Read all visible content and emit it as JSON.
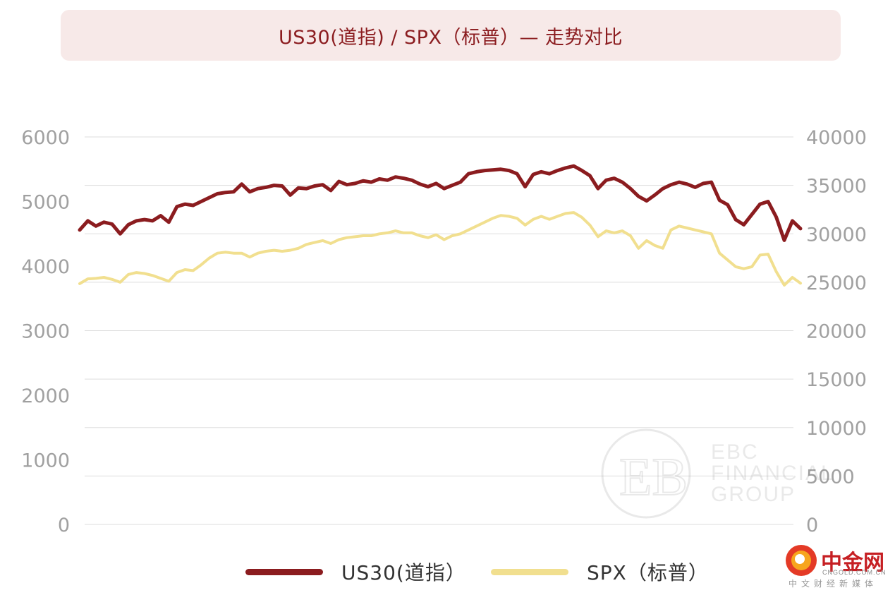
{
  "title": "US30(道指) / SPX（标普）— 走势对比",
  "chart_data": {
    "type": "line",
    "left_axis": {
      "min": 0,
      "max": 6000,
      "ticks": [
        "0",
        "1000",
        "2000",
        "3000",
        "4000",
        "5000",
        "6000"
      ]
    },
    "right_axis": {
      "min": 0,
      "max": 40000,
      "ticks": [
        "0",
        "5000",
        "10000",
        "15000",
        "20000",
        "25000",
        "30000",
        "35000",
        "40000"
      ]
    },
    "grid": true,
    "legend_position": "bottom",
    "series": [
      {
        "name": "US30(道指）",
        "axis": "left",
        "color": "#8b1c1f",
        "values": [
          4560,
          4700,
          4620,
          4680,
          4650,
          4500,
          4640,
          4700,
          4720,
          4700,
          4780,
          4680,
          4920,
          4960,
          4940,
          5000,
          5060,
          5120,
          5140,
          5150,
          5270,
          5150,
          5200,
          5220,
          5250,
          5240,
          5100,
          5210,
          5200,
          5240,
          5260,
          5170,
          5310,
          5260,
          5280,
          5320,
          5300,
          5350,
          5330,
          5380,
          5360,
          5330,
          5270,
          5230,
          5280,
          5200,
          5250,
          5300,
          5430,
          5460,
          5480,
          5490,
          5500,
          5480,
          5430,
          5230,
          5420,
          5460,
          5430,
          5480,
          5520,
          5550,
          5480,
          5400,
          5200,
          5330,
          5360,
          5300,
          5200,
          5080,
          5010,
          5100,
          5200,
          5260,
          5300,
          5270,
          5220,
          5280,
          5300,
          5020,
          4950,
          4720,
          4640,
          4800,
          4960,
          5000,
          4760,
          4400,
          4700,
          4580
        ]
      },
      {
        "name": "SPX（标普）",
        "axis": "right",
        "color": "#f1df8f",
        "values": [
          24850,
          25350,
          25400,
          25500,
          25300,
          25000,
          25800,
          26000,
          25900,
          25700,
          25400,
          25100,
          26000,
          26300,
          26200,
          26800,
          27500,
          28000,
          28100,
          28000,
          28000,
          27600,
          28000,
          28200,
          28300,
          28200,
          28300,
          28500,
          28900,
          29100,
          29300,
          29000,
          29400,
          29600,
          29700,
          29800,
          29800,
          30000,
          30100,
          30300,
          30100,
          30100,
          29800,
          29600,
          29900,
          29400,
          29800,
          30000,
          30400,
          30800,
          31200,
          31600,
          31900,
          31800,
          31600,
          30900,
          31500,
          31800,
          31500,
          31800,
          32100,
          32200,
          31700,
          30900,
          29700,
          30300,
          30100,
          30300,
          29800,
          28500,
          29300,
          28800,
          28500,
          30400,
          30800,
          30600,
          30400,
          30200,
          30000,
          28000,
          27300,
          26600,
          26400,
          26600,
          27800,
          27900,
          26100,
          24700,
          25500,
          24900
        ]
      }
    ]
  },
  "legend": [
    {
      "label": "US30(道指）",
      "color": "#8b1c1f"
    },
    {
      "label": "SPX（标普）",
      "color": "#f1df8f"
    }
  ],
  "watermark": {
    "lines": [
      "EBC",
      "FINANCIAL",
      "GROUP"
    ]
  },
  "logo": {
    "name": "中金网",
    "domain": "CNGOLD.COM.CN",
    "tagline": "中文财经新媒体"
  }
}
